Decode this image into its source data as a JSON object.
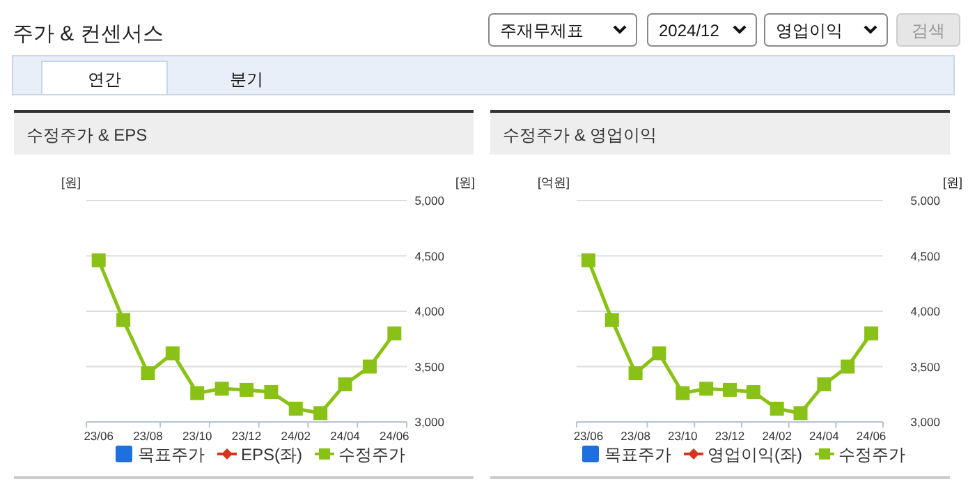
{
  "chart_data": [
    {
      "type": "other",
      "title": "주가 & 컨센서스",
      "annotations": [
        "주재무제표",
        "2024/12",
        "영업이익",
        "검색",
        "연간",
        "분기"
      ]
    },
    {
      "type": "line",
      "title": "수정주가 & EPS",
      "ylabel": "[원]",
      "y2label": "[원]",
      "categories": [
        "23/06",
        null,
        "23/08",
        null,
        "23/10",
        null,
        "23/12",
        null,
        "24/02",
        null,
        "24/04",
        null,
        "24/06"
      ],
      "series": [
        {
          "name": "목표주가",
          "type": "bar",
          "color": "#1f6fde",
          "values": [
            null,
            null,
            null,
            null,
            null,
            null,
            null,
            null,
            null,
            null,
            null,
            null,
            null
          ]
        },
        {
          "name": "EPS(좌)",
          "type": "line",
          "marker": "diamond",
          "color": "#d6361f",
          "values": [
            null,
            null,
            null,
            null,
            null,
            null,
            null,
            null,
            null,
            null,
            null,
            null,
            null
          ]
        },
        {
          "name": "수정주가",
          "type": "line",
          "marker": "square",
          "color": "#8ac116",
          "axis": "y2",
          "values": [
            4460,
            3920,
            3440,
            3620,
            3260,
            3300,
            3290,
            3270,
            3120,
            3080,
            3340,
            3500,
            3800
          ]
        }
      ],
      "y2lim": [
        3000,
        5000
      ],
      "y2ticks": [
        {
          "value": 3000,
          "label": "3,000"
        },
        {
          "value": 3500,
          "label": "3,500"
        },
        {
          "value": 4000,
          "label": "4,000"
        },
        {
          "value": 4500,
          "label": "4,500"
        },
        {
          "value": 5000,
          "label": "5,000"
        }
      ],
      "grid": true,
      "legend": "bottom"
    },
    {
      "type": "line",
      "title": "수정주가 & 영업이익",
      "ylabel": "[억원]",
      "y2label": "[원]",
      "categories": [
        "23/06",
        null,
        "23/08",
        null,
        "23/10",
        null,
        "23/12",
        null,
        "24/02",
        null,
        "24/04",
        null,
        "24/06"
      ],
      "series": [
        {
          "name": "목표주가",
          "type": "bar",
          "color": "#1f6fde",
          "values": [
            null,
            null,
            null,
            null,
            null,
            null,
            null,
            null,
            null,
            null,
            null,
            null,
            null
          ]
        },
        {
          "name": "영업이익(좌)",
          "type": "line",
          "marker": "diamond",
          "color": "#d6361f",
          "values": [
            null,
            null,
            null,
            null,
            null,
            null,
            null,
            null,
            null,
            null,
            null,
            null,
            null
          ]
        },
        {
          "name": "수정주가",
          "type": "line",
          "marker": "square",
          "color": "#8ac116",
          "axis": "y2",
          "values": [
            4460,
            3920,
            3440,
            3620,
            3260,
            3300,
            3290,
            3270,
            3120,
            3080,
            3340,
            3500,
            3800
          ]
        }
      ],
      "y2lim": [
        3000,
        5000
      ],
      "y2ticks": [
        {
          "value": 3000,
          "label": "3,000"
        },
        {
          "value": 3500,
          "label": "3,500"
        },
        {
          "value": 4000,
          "label": "4,000"
        },
        {
          "value": 4500,
          "label": "4,500"
        },
        {
          "value": 5000,
          "label": "5,000"
        }
      ],
      "grid": true,
      "legend": "bottom"
    }
  ]
}
